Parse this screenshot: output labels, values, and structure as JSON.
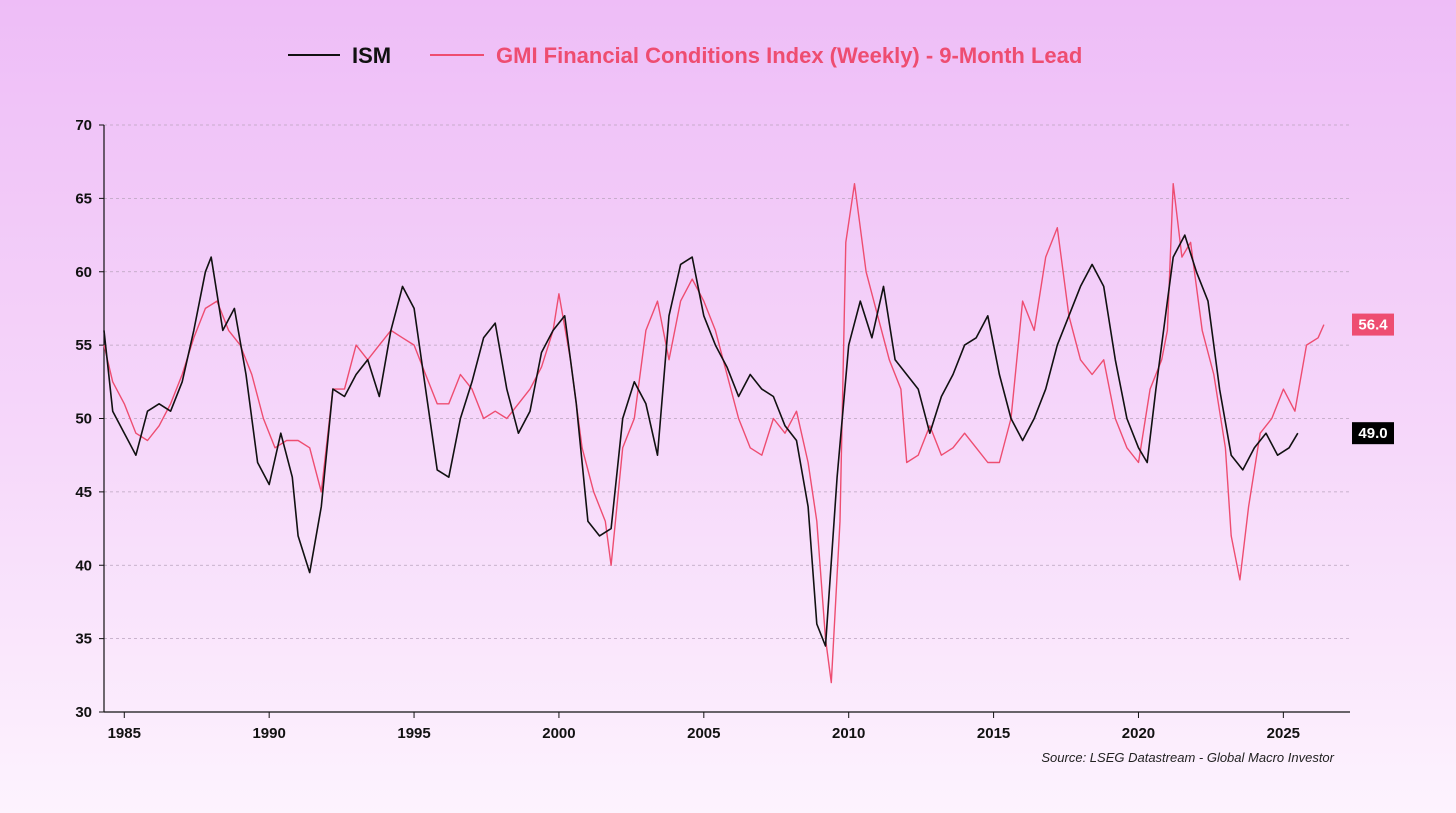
{
  "chart_data": {
    "type": "line",
    "title": "",
    "xlabel": "",
    "ylabel": "",
    "xlim": [
      1984.3,
      2027.3
    ],
    "ylim": [
      30,
      70
    ],
    "yticks": [
      30,
      35,
      40,
      45,
      50,
      55,
      60,
      65,
      70
    ],
    "xticks": [
      1985,
      1990,
      1995,
      2000,
      2005,
      2010,
      2015,
      2020,
      2025
    ],
    "grid": "horizontal-dashed",
    "legend_position": "top-center",
    "source": "Source: LSEG Datastream - Global Macro Investor",
    "series": [
      {
        "name": "ISM",
        "color": "#111111",
        "end_label": "49.0",
        "x": [
          1984.3,
          1984.6,
          1985.0,
          1985.4,
          1985.8,
          1986.2,
          1986.6,
          1987.0,
          1987.4,
          1987.8,
          1988.0,
          1988.4,
          1988.8,
          1989.2,
          1989.6,
          1990.0,
          1990.4,
          1990.8,
          1991.0,
          1991.4,
          1991.8,
          1992.2,
          1992.6,
          1993.0,
          1993.4,
          1993.8,
          1994.2,
          1994.6,
          1995.0,
          1995.4,
          1995.8,
          1996.2,
          1996.6,
          1997.0,
          1997.4,
          1997.8,
          1998.2,
          1998.6,
          1999.0,
          1999.4,
          1999.8,
          2000.2,
          2000.6,
          2001.0,
          2001.4,
          2001.8,
          2002.2,
          2002.6,
          2003.0,
          2003.4,
          2003.8,
          2004.2,
          2004.6,
          2005.0,
          2005.4,
          2005.8,
          2006.2,
          2006.6,
          2007.0,
          2007.4,
          2007.8,
          2008.2,
          2008.6,
          2008.9,
          2009.2,
          2009.6,
          2010.0,
          2010.4,
          2010.8,
          2011.2,
          2011.6,
          2012.0,
          2012.4,
          2012.8,
          2013.2,
          2013.6,
          2014.0,
          2014.4,
          2014.8,
          2015.2,
          2015.6,
          2016.0,
          2016.4,
          2016.8,
          2017.2,
          2017.6,
          2018.0,
          2018.4,
          2018.8,
          2019.2,
          2019.6,
          2020.0,
          2020.3,
          2020.6,
          2021.0,
          2021.2,
          2021.6,
          2022.0,
          2022.4,
          2022.8,
          2023.2,
          2023.6,
          2024.0,
          2024.4,
          2024.8,
          2025.2,
          2025.5
        ],
        "y": [
          56,
          50.5,
          49,
          47.5,
          50.5,
          51,
          50.5,
          52.5,
          56,
          60,
          61,
          56,
          57.5,
          53,
          47,
          45.5,
          49,
          46,
          42,
          39.5,
          44,
          52,
          51.5,
          53,
          54,
          51.5,
          56,
          59,
          57.5,
          52,
          46.5,
          46,
          50,
          52.5,
          55.5,
          56.5,
          52,
          49,
          50.5,
          54.5,
          56,
          57,
          51,
          43,
          42,
          42.5,
          50,
          52.5,
          51,
          47.5,
          57,
          60.5,
          61,
          57,
          55,
          53.5,
          51.5,
          53,
          52,
          51.5,
          49.5,
          48.5,
          44,
          36,
          34.5,
          46,
          55,
          58,
          55.5,
          59,
          54,
          53,
          52,
          49,
          51.5,
          53,
          55,
          55.5,
          57,
          53,
          50,
          48.5,
          50,
          52,
          55,
          57,
          59,
          60.5,
          59,
          54,
          50,
          48,
          47,
          52,
          58,
          61,
          62.5,
          60,
          58,
          52,
          47.5,
          46.5,
          48,
          49,
          47.5,
          48,
          49
        ]
      },
      {
        "name": "GMI Financial Conditions Index (Weekly) - 9-Month Lead",
        "color": "#ee4d71",
        "end_label": "56.4",
        "x": [
          1984.3,
          1984.6,
          1985.0,
          1985.4,
          1985.8,
          1986.2,
          1986.6,
          1987.0,
          1987.4,
          1987.8,
          1988.2,
          1988.6,
          1989.0,
          1989.4,
          1989.8,
          1990.2,
          1990.6,
          1991.0,
          1991.4,
          1991.8,
          1992.2,
          1992.6,
          1993.0,
          1993.4,
          1993.8,
          1994.2,
          1994.6,
          1995.0,
          1995.4,
          1995.8,
          1996.2,
          1996.6,
          1997.0,
          1997.4,
          1997.8,
          1998.2,
          1998.6,
          1999.0,
          1999.4,
          1999.8,
          2000.0,
          2000.4,
          2000.8,
          2001.2,
          2001.6,
          2001.8,
          2002.2,
          2002.6,
          2003.0,
          2003.4,
          2003.8,
          2004.2,
          2004.6,
          2005.0,
          2005.4,
          2005.8,
          2006.2,
          2006.6,
          2007.0,
          2007.4,
          2007.8,
          2008.2,
          2008.6,
          2008.9,
          2009.2,
          2009.4,
          2009.7,
          2009.9,
          2010.2,
          2010.6,
          2011.0,
          2011.4,
          2011.8,
          2012.0,
          2012.4,
          2012.8,
          2013.2,
          2013.6,
          2014.0,
          2014.4,
          2014.8,
          2015.2,
          2015.6,
          2016.0,
          2016.4,
          2016.8,
          2017.2,
          2017.6,
          2018.0,
          2018.4,
          2018.8,
          2019.2,
          2019.6,
          2020.0,
          2020.4,
          2020.8,
          2021.0,
          2021.2,
          2021.5,
          2021.8,
          2022.2,
          2022.6,
          2023.0,
          2023.2,
          2023.5,
          2023.8,
          2024.2,
          2024.6,
          2025.0,
          2025.4,
          2025.8,
          2026.2,
          2026.4
        ],
        "y": [
          55,
          52.5,
          51,
          49,
          48.5,
          49.5,
          51,
          53,
          55.5,
          57.5,
          58,
          56,
          55,
          53,
          50,
          48,
          48.5,
          48.5,
          48,
          45,
          52,
          52,
          55,
          54,
          55,
          56,
          55.5,
          55,
          53,
          51,
          51,
          53,
          52,
          50,
          50.5,
          50,
          51,
          52,
          53.5,
          56,
          58.5,
          54,
          48,
          45,
          43,
          40,
          48,
          50,
          56,
          58,
          54,
          58,
          59.5,
          58,
          56,
          53,
          50,
          48,
          47.5,
          50,
          49,
          50.5,
          47,
          43,
          35,
          32,
          43,
          62,
          66,
          60,
          57,
          54,
          52,
          47,
          47.5,
          49.5,
          47.5,
          48,
          49,
          48,
          47,
          47,
          50,
          58,
          56,
          61,
          63,
          57,
          54,
          53,
          54,
          50,
          48,
          47,
          52,
          54,
          56,
          66,
          61,
          62,
          56,
          53,
          48,
          42,
          39,
          44,
          49,
          50,
          52,
          50.5,
          55,
          55.5,
          56.4
        ]
      }
    ]
  }
}
